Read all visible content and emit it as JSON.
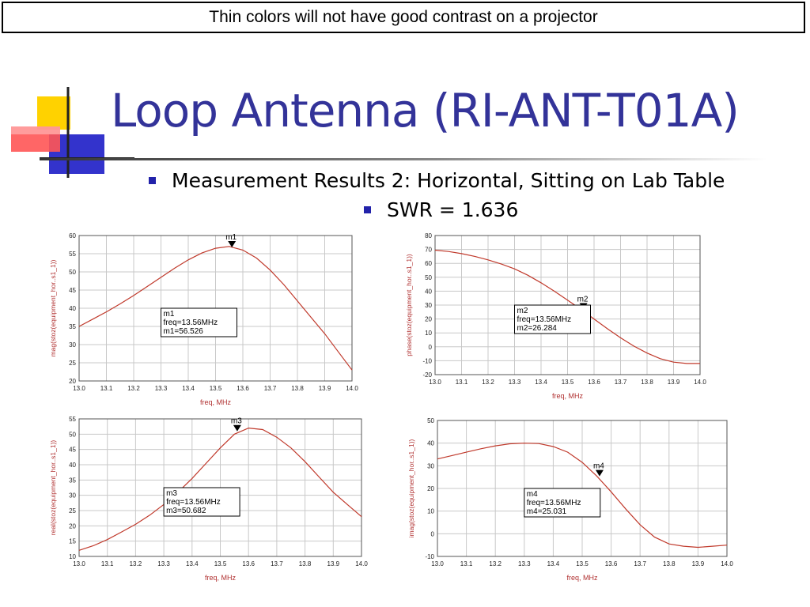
{
  "banner": {
    "text": "Thin colors will not have good contrast on a projector"
  },
  "slide": {
    "title": "Loop Antenna (RI-ANT-T01A)",
    "bullets": [
      "Measurement Results 2:  Horizontal, Sitting on Lab Table",
      "SWR = 1.636"
    ]
  },
  "colors": {
    "title": "#333399",
    "trace": "#c0392b",
    "bullet": "#2222aa",
    "grid": "#c8c8c8"
  },
  "chart_data": [
    {
      "type": "line",
      "xlabel": "freq, MHz",
      "ylabel": "mag(stoz(equipment_hor..s1_1))",
      "xlim": [
        13.0,
        14.0
      ],
      "ylim": [
        20,
        60
      ],
      "xticks": [
        "13.0",
        "13.1",
        "13.2",
        "13.3",
        "13.4",
        "13.5",
        "13.6",
        "13.7",
        "13.8",
        "13.9",
        "14.0"
      ],
      "yticks": [
        "20",
        "25",
        "30",
        "35",
        "40",
        "45",
        "50",
        "55",
        "60"
      ],
      "grid": true,
      "series": [
        {
          "x": [
            13.0,
            13.05,
            13.1,
            13.15,
            13.2,
            13.25,
            13.3,
            13.35,
            13.4,
            13.45,
            13.5,
            13.55,
            13.6,
            13.65,
            13.7,
            13.75,
            13.8,
            13.85,
            13.9,
            13.95,
            14.0
          ],
          "values": [
            35,
            37,
            39,
            41.2,
            43.5,
            46,
            48.5,
            51,
            53.3,
            55.2,
            56.5,
            57,
            56,
            53.8,
            50.5,
            46.5,
            42,
            37.5,
            33,
            28,
            23
          ]
        }
      ],
      "marker": {
        "name": "m1",
        "x": 13.56,
        "y": 56.526,
        "label": [
          "m1",
          "freq=13.56MHz",
          "m1=56.526"
        ]
      }
    },
    {
      "type": "line",
      "xlabel": "freq, MHz",
      "ylabel": "phase(stoz(equipment_hor..s1_1))",
      "xlim": [
        13.0,
        14.0
      ],
      "ylim": [
        -20,
        80
      ],
      "xticks": [
        "13.0",
        "13.1",
        "13.2",
        "13.3",
        "13.4",
        "13.5",
        "13.6",
        "13.7",
        "13.8",
        "13.9",
        "14.0"
      ],
      "yticks": [
        "-20",
        "-10",
        "0",
        "10",
        "20",
        "30",
        "40",
        "50",
        "60",
        "70",
        "80"
      ],
      "grid": true,
      "series": [
        {
          "x": [
            13.0,
            13.05,
            13.1,
            13.15,
            13.2,
            13.25,
            13.3,
            13.35,
            13.4,
            13.45,
            13.5,
            13.55,
            13.6,
            13.65,
            13.7,
            13.75,
            13.8,
            13.85,
            13.9,
            13.95,
            14.0
          ],
          "values": [
            69.5,
            68.5,
            67,
            65,
            62.5,
            59.5,
            56,
            51.5,
            46,
            40,
            33.5,
            27,
            20,
            13,
            6.5,
            0.5,
            -4.5,
            -8.5,
            -11,
            -12,
            -12
          ]
        }
      ],
      "marker": {
        "name": "m2",
        "x": 13.56,
        "y": 26.284,
        "label": [
          "m2",
          "freq=13.56MHz",
          "m2=26.284"
        ]
      }
    },
    {
      "type": "line",
      "xlabel": "freq, MHz",
      "ylabel": "real(stoz(equipment_hor..s1_1))",
      "xlim": [
        13.0,
        14.0
      ],
      "ylim": [
        10,
        55
      ],
      "xticks": [
        "13.0",
        "13.1",
        "13.2",
        "13.3",
        "13.4",
        "13.5",
        "13.6",
        "13.7",
        "13.8",
        "13.9",
        "14.0"
      ],
      "yticks": [
        "10",
        "15",
        "20",
        "25",
        "30",
        "35",
        "40",
        "45",
        "50",
        "55"
      ],
      "grid": true,
      "series": [
        {
          "x": [
            13.0,
            13.05,
            13.1,
            13.15,
            13.2,
            13.25,
            13.3,
            13.35,
            13.4,
            13.45,
            13.5,
            13.55,
            13.6,
            13.65,
            13.7,
            13.75,
            13.8,
            13.85,
            13.9,
            13.95,
            14.0
          ],
          "values": [
            12,
            13.5,
            15.5,
            18,
            20.5,
            23.5,
            27,
            31,
            35.5,
            40.5,
            45.5,
            50,
            52,
            51.5,
            49,
            45.5,
            41,
            36,
            31,
            27,
            23
          ]
        }
      ],
      "marker": {
        "name": "m3",
        "x": 13.56,
        "y": 50.682,
        "label": [
          "m3",
          "freq=13.56MHz",
          "m3=50.682"
        ]
      }
    },
    {
      "type": "line",
      "xlabel": "freq, MHz",
      "ylabel": "imag(stoz(equipment_hor..s1_1))",
      "xlim": [
        13.0,
        14.0
      ],
      "ylim": [
        -10,
        50
      ],
      "xticks": [
        "13.0",
        "13.1",
        "13.2",
        "13.3",
        "13.4",
        "13.5",
        "13.6",
        "13.7",
        "13.8",
        "13.9",
        "14.0"
      ],
      "yticks": [
        "-10",
        "0",
        "10",
        "20",
        "30",
        "40",
        "50"
      ],
      "grid": true,
      "series": [
        {
          "x": [
            13.0,
            13.05,
            13.1,
            13.15,
            13.2,
            13.25,
            13.3,
            13.35,
            13.4,
            13.45,
            13.5,
            13.55,
            13.6,
            13.65,
            13.7,
            13.75,
            13.8,
            13.85,
            13.9,
            13.95,
            14.0
          ],
          "values": [
            33,
            34.5,
            36,
            37.5,
            38.8,
            39.7,
            40,
            39.8,
            38.5,
            36,
            31.5,
            25.5,
            18.5,
            11,
            4,
            -1.5,
            -4.5,
            -5.5,
            -6,
            -5.5,
            -5
          ]
        }
      ],
      "marker": {
        "name": "m4",
        "x": 13.56,
        "y": 25.031,
        "label": [
          "m4",
          "freq=13.56MHz",
          "m4=25.031"
        ]
      }
    }
  ]
}
